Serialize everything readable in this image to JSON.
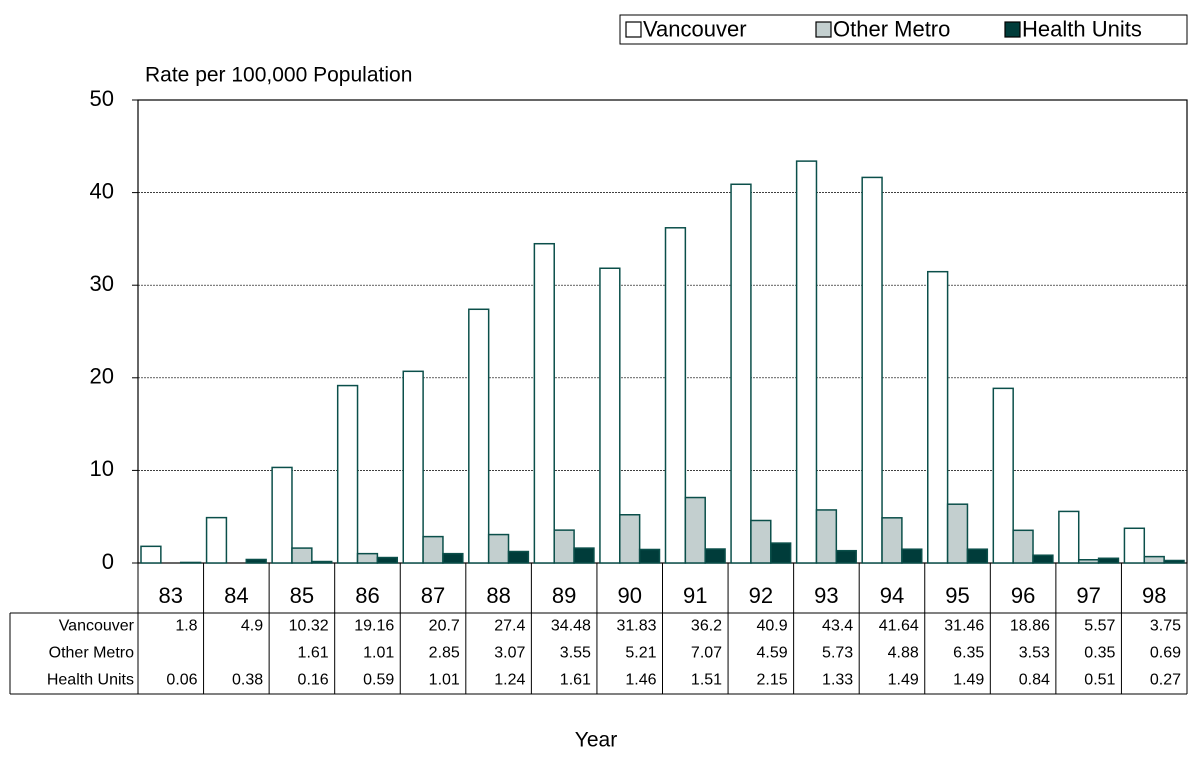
{
  "chart_data": {
    "type": "bar",
    "y_axis_label": "Rate per 100,000 Population",
    "x_axis_label": "Year",
    "categories": [
      "83",
      "84",
      "85",
      "86",
      "87",
      "88",
      "89",
      "90",
      "91",
      "92",
      "93",
      "94",
      "95",
      "96",
      "97",
      "98"
    ],
    "series": [
      {
        "name": "Vancouver",
        "color": "#ffffff",
        "values": [
          1.8,
          4.9,
          10.32,
          19.16,
          20.7,
          27.4,
          34.48,
          31.83,
          36.2,
          40.9,
          43.4,
          41.64,
          31.46,
          18.86,
          5.57,
          3.75
        ]
      },
      {
        "name": "Other Metro",
        "color": "#c3cfcf",
        "values": [
          null,
          null,
          1.61,
          1.01,
          2.85,
          3.07,
          3.55,
          5.21,
          7.07,
          4.59,
          5.73,
          4.88,
          6.35,
          3.53,
          0.35,
          0.69
        ]
      },
      {
        "name": "Health Units",
        "color": "#003c3a",
        "values": [
          0.06,
          0.38,
          0.16,
          0.59,
          1.01,
          1.24,
          1.61,
          1.46,
          1.51,
          2.15,
          1.33,
          1.49,
          1.49,
          0.84,
          0.51,
          0.27
        ]
      }
    ],
    "edgecolor": "#0b4f4a",
    "ylim": [
      0,
      50
    ],
    "yticks": [
      0,
      10,
      20,
      30,
      40,
      50
    ],
    "grid": true,
    "legend": "top-right",
    "data_table": true
  }
}
